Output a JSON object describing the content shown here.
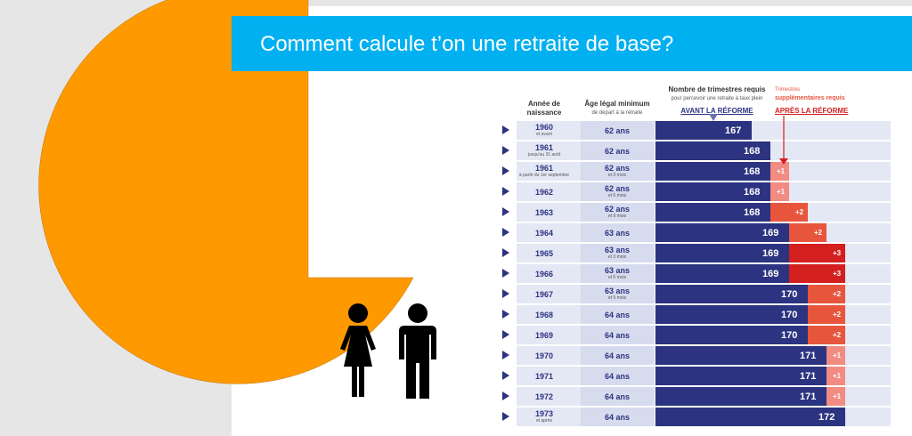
{
  "slide": {
    "title": "Comment calcule t’on une retraite de base?"
  },
  "table": {
    "headers": {
      "birth_year": "Année de naissance",
      "legal_age": "Âge légal minimum",
      "legal_age_sub": "de départ à la retraite",
      "quarters": "Nombre de trimestres requis",
      "quarters_sub": "pour percevoir une retraite à taux plein",
      "before": "AVANT LA RÉFORME",
      "extra_top": "Trimestres",
      "extra": "supplémentaires requis",
      "after": "APRÈS LA RÉFORME"
    },
    "rows": [
      {
        "year": "1960",
        "year_sub": "et avant",
        "age": "62 ans",
        "age_sub": "",
        "quarters": 167,
        "quarters_label": "167",
        "extra": 0,
        "extra_label": ""
      },
      {
        "year": "1961",
        "year_sub": "jusqu'au 31 août",
        "age": "62 ans",
        "age_sub": "",
        "quarters": 168,
        "quarters_label": "168",
        "extra": 0,
        "extra_label": ""
      },
      {
        "year": "1961",
        "year_sub": "à partir du 1er septembre",
        "age": "62 ans",
        "age_sub": "et 3 mois",
        "quarters": 168,
        "quarters_label": "168",
        "extra": 1,
        "extra_label": "+1"
      },
      {
        "year": "1962",
        "year_sub": "",
        "age": "62 ans",
        "age_sub": "et 6 mois",
        "quarters": 168,
        "quarters_label": "168",
        "extra": 1,
        "extra_label": "+1"
      },
      {
        "year": "1963",
        "year_sub": "",
        "age": "62 ans",
        "age_sub": "et 9 mois",
        "quarters": 168,
        "quarters_label": "168",
        "extra": 2,
        "extra_label": "+2"
      },
      {
        "year": "1964",
        "year_sub": "",
        "age": "63 ans",
        "age_sub": "",
        "quarters": 169,
        "quarters_label": "169",
        "extra": 2,
        "extra_label": "+2"
      },
      {
        "year": "1965",
        "year_sub": "",
        "age": "63 ans",
        "age_sub": "et 3 mois",
        "quarters": 169,
        "quarters_label": "169",
        "extra": 3,
        "extra_label": "+3"
      },
      {
        "year": "1966",
        "year_sub": "",
        "age": "63 ans",
        "age_sub": "et 6 mois",
        "quarters": 169,
        "quarters_label": "169",
        "extra": 3,
        "extra_label": "+3"
      },
      {
        "year": "1967",
        "year_sub": "",
        "age": "63 ans",
        "age_sub": "et 9 mois",
        "quarters": 170,
        "quarters_label": "170",
        "extra": 2,
        "extra_label": "+2"
      },
      {
        "year": "1968",
        "year_sub": "",
        "age": "64 ans",
        "age_sub": "",
        "quarters": 170,
        "quarters_label": "170",
        "extra": 2,
        "extra_label": "+2"
      },
      {
        "year": "1969",
        "year_sub": "",
        "age": "64 ans",
        "age_sub": "",
        "quarters": 170,
        "quarters_label": "170",
        "extra": 2,
        "extra_label": "+2"
      },
      {
        "year": "1970",
        "year_sub": "",
        "age": "64 ans",
        "age_sub": "",
        "quarters": 171,
        "quarters_label": "171",
        "extra": 1,
        "extra_label": "+1"
      },
      {
        "year": "1971",
        "year_sub": "",
        "age": "64 ans",
        "age_sub": "",
        "quarters": 171,
        "quarters_label": "171",
        "extra": 1,
        "extra_label": "+1"
      },
      {
        "year": "1972",
        "year_sub": "",
        "age": "64 ans",
        "age_sub": "",
        "quarters": 171,
        "quarters_label": "171",
        "extra": 1,
        "extra_label": "+1"
      },
      {
        "year": "1973",
        "year_sub": "et après",
        "age": "64 ans",
        "age_sub": "",
        "quarters": 172,
        "quarters_label": "172",
        "extra": 0,
        "extra_label": ""
      }
    ]
  },
  "colors": {
    "accent": "#00b0f0",
    "orange": "#ff9900",
    "navy": "#2c3380",
    "extra1": "#f28b82",
    "extra2": "#e8553d",
    "extra3": "#d41f1f",
    "row_bg": "#e4e8f4"
  },
  "icons": [
    "woman-icon",
    "man-icon"
  ]
}
